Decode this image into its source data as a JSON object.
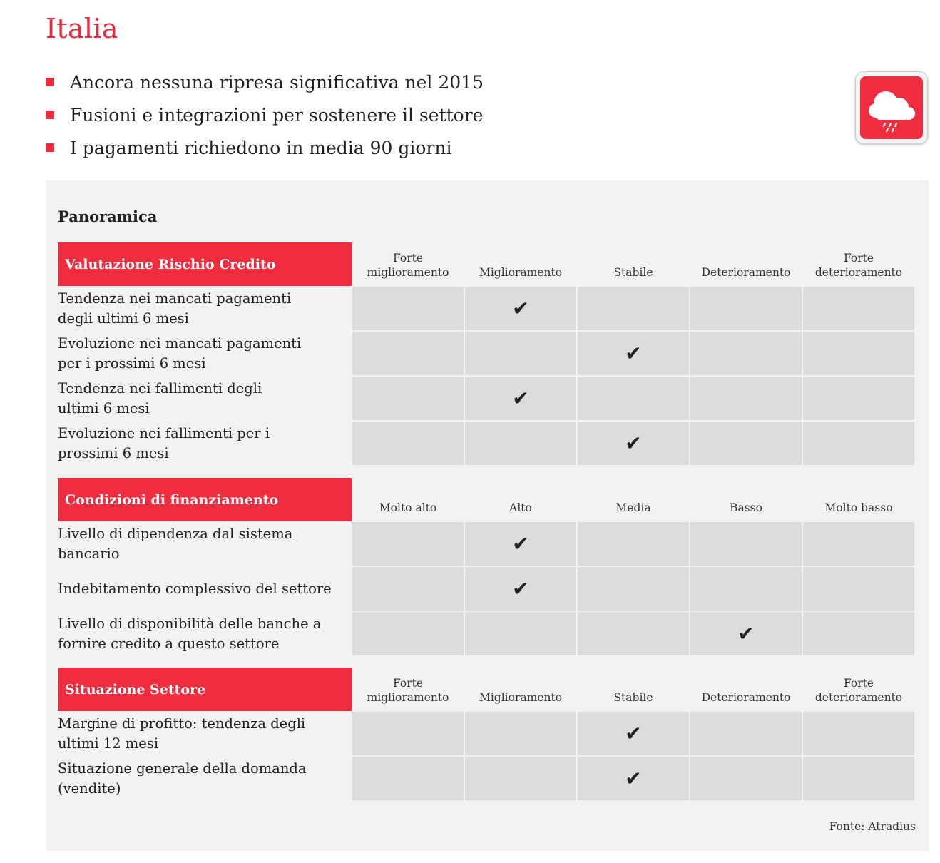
{
  "title": "Italia",
  "bullets": [
    "Ancora nessuna ripresa significativa nel 2015",
    "Fusioni e integrazioni per sostenere il settore",
    "I pagamenti richiedono in media 90 giorni"
  ],
  "weather_icon": "rain-cloud-icon",
  "panel": {
    "title": "Panoramica",
    "source": "Fonte: Atradius"
  },
  "check_symbol": "✔",
  "sections": [
    {
      "header": "Valutazione Rischio Credito",
      "columns": [
        [
          "Forte",
          "miglioramento"
        ],
        [
          "Miglioramento"
        ],
        [
          "Stabile"
        ],
        [
          "Deterioramento"
        ],
        [
          "Forte",
          "deterioramento"
        ]
      ],
      "rows": [
        {
          "label": [
            "Tendenza nei mancati pagamenti",
            "degli ultimi 6 mesi"
          ],
          "selected": "Miglioramento"
        },
        {
          "label": [
            "Evoluzione nei mancati pagamenti",
            "per i prossimi 6 mesi"
          ],
          "selected": "Stabile"
        },
        {
          "label": [
            "Tendenza nei fallimenti degli",
            "ultimi 6 mesi"
          ],
          "selected": "Miglioramento"
        },
        {
          "label": [
            "Evoluzione nei fallimenti per i",
            "prossimi 6 mesi"
          ],
          "selected": "Stabile"
        }
      ]
    },
    {
      "header": "Condizioni di finanziamento",
      "columns": [
        [
          "Molto alto"
        ],
        [
          "Alto"
        ],
        [
          "Media"
        ],
        [
          "Basso"
        ],
        [
          "Molto basso"
        ]
      ],
      "rows": [
        {
          "label": [
            "Livello di dipendenza dal sistema",
            "bancario"
          ],
          "selected": "Alto"
        },
        {
          "label": [
            "Indebitamento complessivo del settore"
          ],
          "selected": "Alto"
        },
        {
          "label": [
            "Livello di disponibilità delle banche a",
            "fornire credito a questo settore"
          ],
          "selected": "Basso"
        }
      ]
    },
    {
      "header": "Situazione Settore",
      "columns": [
        [
          "Forte",
          "miglioramento"
        ],
        [
          "Miglioramento"
        ],
        [
          "Stabile"
        ],
        [
          "Deterioramento"
        ],
        [
          "Forte",
          "deterioramento"
        ]
      ],
      "rows": [
        {
          "label": [
            "Margine di profitto: tendenza degli",
            "ultimi 12 mesi"
          ],
          "selected": "Stabile"
        },
        {
          "label": [
            "Situazione generale della domanda",
            "(vendite)"
          ],
          "selected": "Stabile"
        }
      ]
    }
  ]
}
